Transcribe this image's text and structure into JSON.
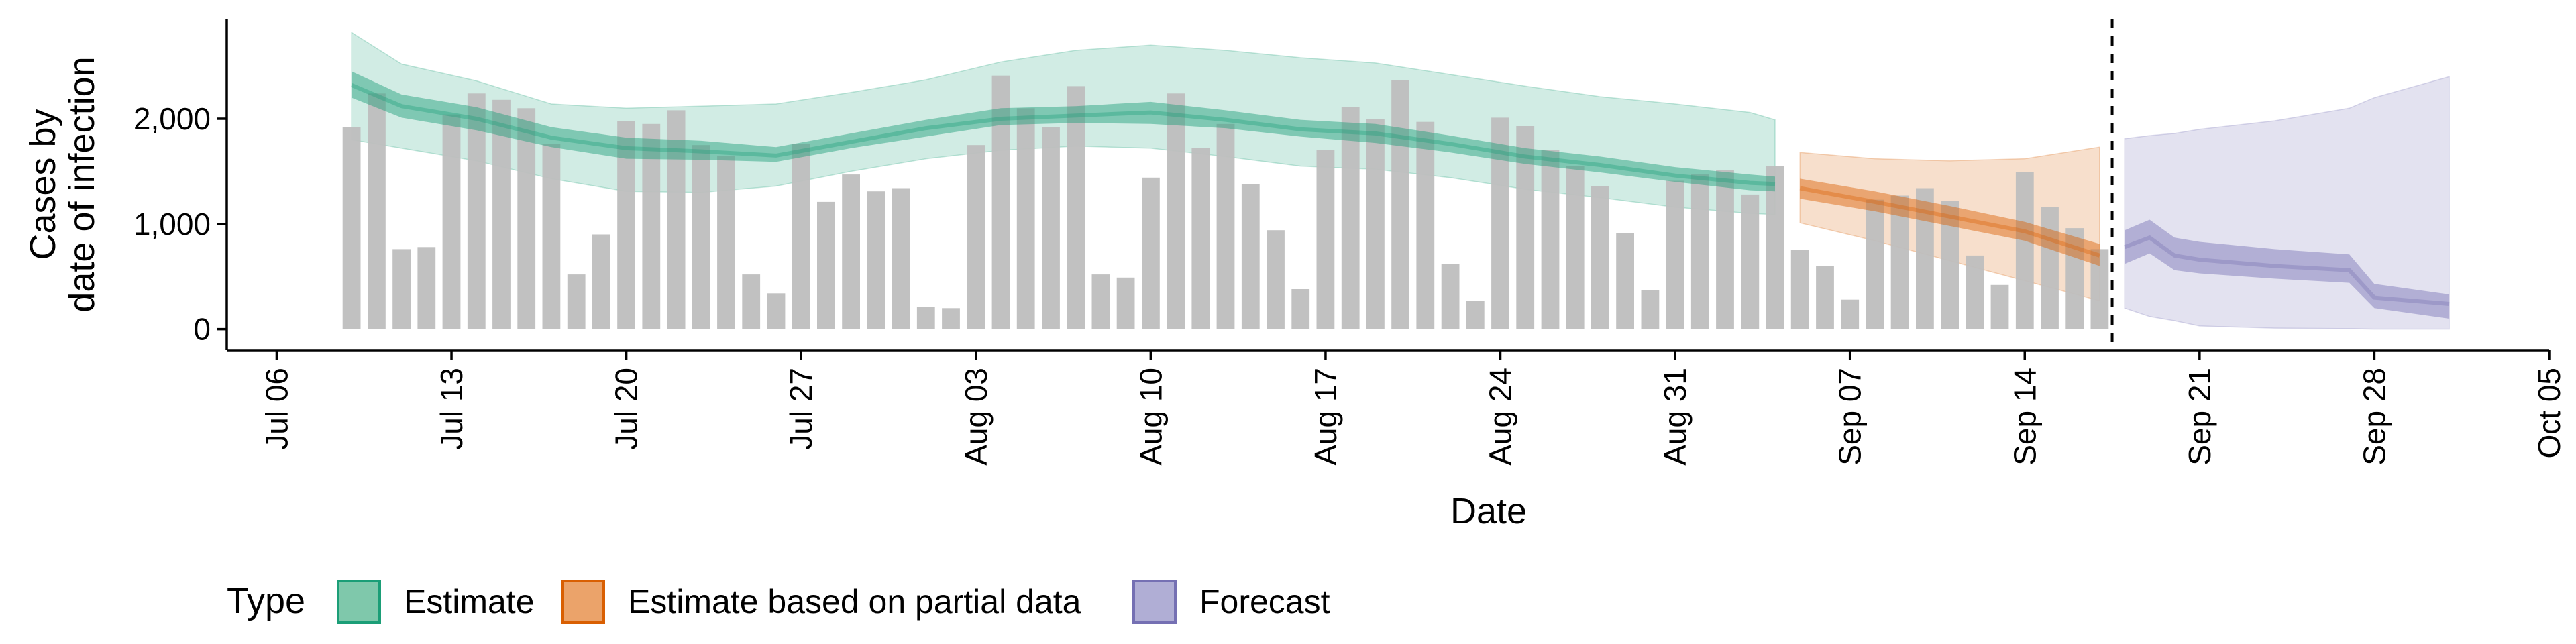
{
  "chart_data": {
    "type": "bar",
    "xlabel": "Date",
    "ylabel": [
      "Cases by",
      "date of infection"
    ],
    "xlim": [
      "2020-07-04",
      "2020-10-05"
    ],
    "ylim": [
      -200,
      2950
    ],
    "x_ticks": [
      "Jul 06",
      "Jul 13",
      "Jul 20",
      "Jul 27",
      "Aug 03",
      "Aug 10",
      "Aug 17",
      "Aug 24",
      "Aug 31",
      "Sep 07",
      "Sep 14",
      "Sep 21",
      "Sep 28",
      "Oct 05"
    ],
    "y_ticks": [
      0,
      1000,
      2000
    ],
    "y_tick_labels": [
      "0",
      "1,000",
      "2,000"
    ],
    "grid": false,
    "observed_bars": {
      "dates": [
        "2020-07-09",
        "2020-07-10",
        "2020-07-11",
        "2020-07-12",
        "2020-07-13",
        "2020-07-14",
        "2020-07-15",
        "2020-07-16",
        "2020-07-17",
        "2020-07-18",
        "2020-07-19",
        "2020-07-20",
        "2020-07-21",
        "2020-07-22",
        "2020-07-23",
        "2020-07-24",
        "2020-07-25",
        "2020-07-26",
        "2020-07-27",
        "2020-07-28",
        "2020-07-29",
        "2020-07-30",
        "2020-07-31",
        "2020-08-01",
        "2020-08-02",
        "2020-08-03",
        "2020-08-04",
        "2020-08-05",
        "2020-08-06",
        "2020-08-07",
        "2020-08-08",
        "2020-08-09",
        "2020-08-10",
        "2020-08-11",
        "2020-08-12",
        "2020-08-13",
        "2020-08-14",
        "2020-08-15",
        "2020-08-16",
        "2020-08-17",
        "2020-08-18",
        "2020-08-19",
        "2020-08-20",
        "2020-08-21",
        "2020-08-22",
        "2020-08-23",
        "2020-08-24",
        "2020-08-25",
        "2020-08-26",
        "2020-08-27",
        "2020-08-28",
        "2020-08-29",
        "2020-08-30",
        "2020-08-31",
        "2020-09-01",
        "2020-09-02",
        "2020-09-03",
        "2020-09-04",
        "2020-09-05",
        "2020-09-06",
        "2020-09-07",
        "2020-09-08",
        "2020-09-09",
        "2020-09-10",
        "2020-09-11",
        "2020-09-12",
        "2020-09-13",
        "2020-09-14",
        "2020-09-15",
        "2020-09-16",
        "2020-09-17"
      ],
      "values": [
        1920,
        2240,
        760,
        780,
        2040,
        2240,
        2180,
        2100,
        1760,
        520,
        900,
        1980,
        1950,
        2080,
        1750,
        1650,
        520,
        340,
        1760,
        1210,
        1470,
        1310,
        1340,
        210,
        200,
        1750,
        2410,
        2100,
        1920,
        2310,
        520,
        490,
        1440,
        2240,
        1720,
        1950,
        1380,
        940,
        380,
        1700,
        2110,
        2000,
        2370,
        1970,
        620,
        270,
        2010,
        1930,
        1700,
        1550,
        1360,
        910,
        370,
        1410,
        1470,
        1510,
        1280,
        1550,
        750,
        600,
        280,
        1230,
        1270,
        1340,
        1220,
        700,
        420,
        1490,
        1160,
        960,
        760
      ]
    },
    "series": [
      {
        "name": "Estimate",
        "color": "#1b9e77",
        "dates": [
          "2020-07-09",
          "2020-07-11",
          "2020-07-14",
          "2020-07-17",
          "2020-07-20",
          "2020-07-23",
          "2020-07-26",
          "2020-07-29",
          "2020-08-01",
          "2020-08-04",
          "2020-08-07",
          "2020-08-10",
          "2020-08-13",
          "2020-08-16",
          "2020-08-19",
          "2020-08-22",
          "2020-08-25",
          "2020-08-28",
          "2020-08-31",
          "2020-09-03",
          "2020-09-04"
        ],
        "median": [
          2320,
          2120,
          2000,
          1820,
          1720,
          1690,
          1650,
          1780,
          1910,
          2000,
          2030,
          2060,
          1990,
          1900,
          1860,
          1760,
          1640,
          1560,
          1460,
          1390,
          1380
        ],
        "inner_low": [
          2200,
          2010,
          1890,
          1730,
          1620,
          1610,
          1590,
          1720,
          1830,
          1940,
          1960,
          1950,
          1910,
          1830,
          1770,
          1680,
          1570,
          1490,
          1400,
          1320,
          1310
        ],
        "inner_high": [
          2450,
          2230,
          2110,
          1920,
          1820,
          1790,
          1730,
          1860,
          1990,
          2100,
          2120,
          2160,
          2080,
          1990,
          1950,
          1840,
          1720,
          1640,
          1540,
          1470,
          1450
        ],
        "outer_low": [
          1800,
          1720,
          1600,
          1430,
          1310,
          1300,
          1360,
          1500,
          1620,
          1700,
          1740,
          1720,
          1640,
          1550,
          1520,
          1440,
          1330,
          1250,
          1160,
          1100,
          1090
        ],
        "outer_high": [
          2820,
          2520,
          2360,
          2140,
          2100,
          2120,
          2140,
          2250,
          2370,
          2540,
          2650,
          2700,
          2650,
          2580,
          2530,
          2420,
          2310,
          2210,
          2140,
          2060,
          1990
        ]
      },
      {
        "name": "Estimate based on partial data",
        "color": "#d95f02",
        "dates": [
          "2020-09-05",
          "2020-09-08",
          "2020-09-11",
          "2020-09-14",
          "2020-09-17"
        ],
        "median": [
          1340,
          1210,
          1070,
          930,
          700
        ],
        "inner_low": [
          1240,
          1120,
          980,
          840,
          600
        ],
        "inner_high": [
          1430,
          1310,
          1170,
          1020,
          810
        ],
        "outer_low": [
          1010,
          840,
          650,
          460,
          270
        ],
        "outer_high": [
          1680,
          1620,
          1600,
          1620,
          1730
        ]
      },
      {
        "name": "Forecast",
        "color": "#7570b3",
        "dates": [
          "2020-09-18",
          "2020-09-19",
          "2020-09-20",
          "2020-09-21",
          "2020-09-24",
          "2020-09-27",
          "2020-09-28",
          "2020-10-01"
        ],
        "median": [
          780,
          870,
          700,
          660,
          600,
          560,
          300,
          240
        ],
        "inner_low": [
          620,
          720,
          560,
          530,
          480,
          440,
          200,
          100
        ],
        "inner_high": [
          940,
          1040,
          870,
          830,
          760,
          710,
          430,
          330
        ],
        "outer_low": [
          200,
          120,
          80,
          30,
          10,
          5,
          0,
          0
        ],
        "outer_high": [
          1810,
          1840,
          1860,
          1900,
          1980,
          2100,
          2200,
          2400
        ]
      }
    ],
    "forecast_start_line": "2020-09-17",
    "legend": {
      "title": "Type",
      "position": "bottom-left",
      "entries": [
        {
          "label": "Estimate",
          "fill": "#7fc8ab",
          "stroke": "#1b9e77"
        },
        {
          "label": "Estimate based on partial data",
          "fill": "#eba36a",
          "stroke": "#d95f02"
        },
        {
          "label": "Forecast",
          "fill": "#b0aed5",
          "stroke": "#7570b3"
        }
      ]
    },
    "bar_color": "#bebebe"
  }
}
